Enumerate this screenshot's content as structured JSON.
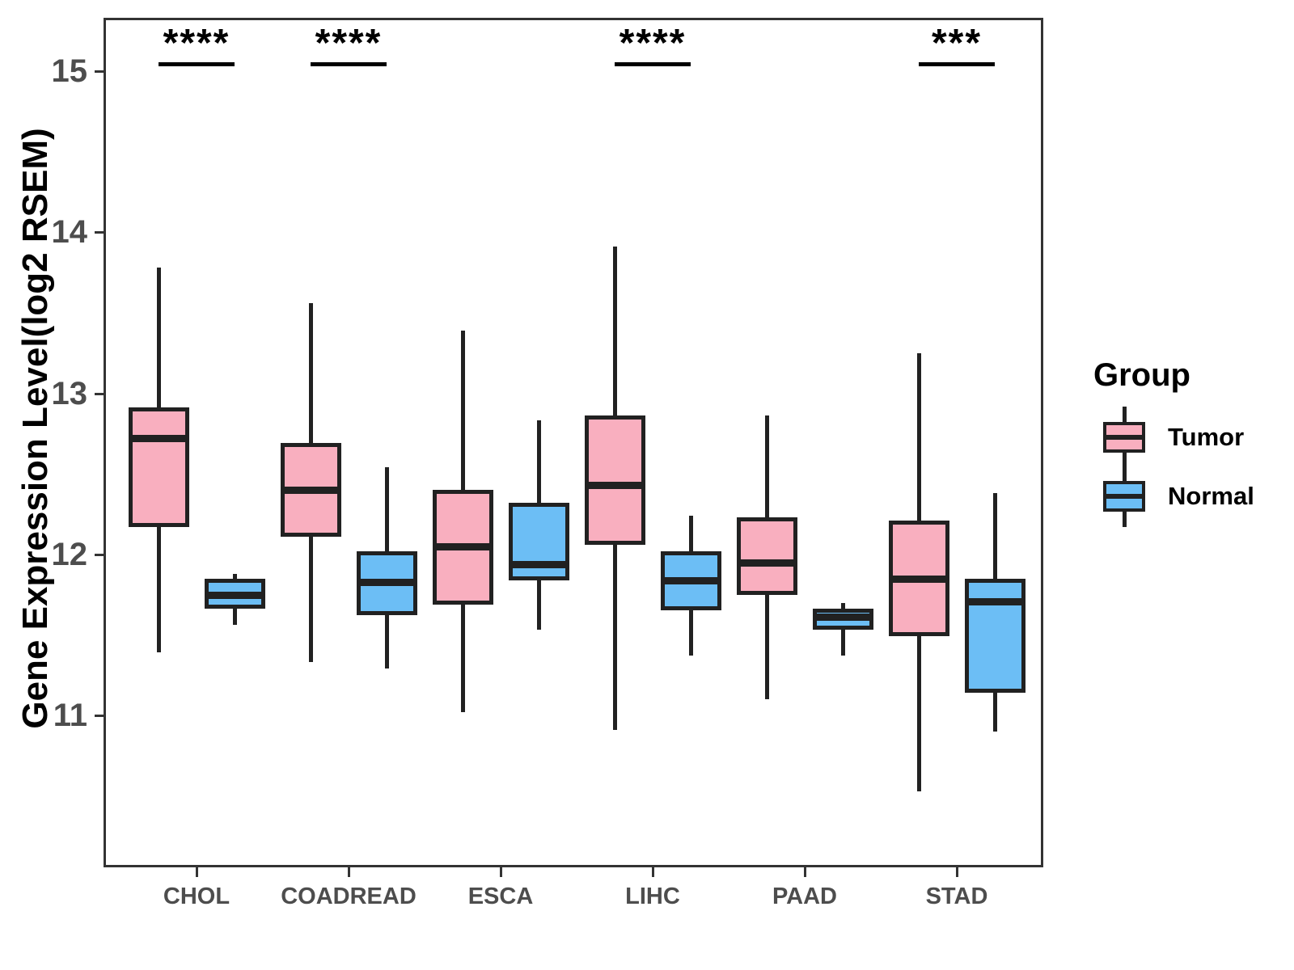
{
  "chart_data": {
    "type": "box",
    "title": "",
    "xlabel": "",
    "ylabel": "Gene Expression Level(log2 RSEM)",
    "categories": [
      "CHOL",
      "COADREAD",
      "ESCA",
      "LIHC",
      "PAAD",
      "STAD"
    ],
    "yticks": [
      11,
      12,
      13,
      14,
      15
    ],
    "ylim": [
      10.05,
      15.35
    ],
    "grid": false,
    "colors": {
      "tumor_fill": "#F9AFBF",
      "normal_fill": "#6CBEF5",
      "box_border": "#212121",
      "panel_border": "#333333",
      "tick_label": "#4d4d4d"
    },
    "legend": {
      "title": "Group",
      "position": "right",
      "entries": [
        {
          "label": "Tumor",
          "color": "#F9AFBF"
        },
        {
          "label": "Normal",
          "color": "#6CBEF5"
        }
      ]
    },
    "series": [
      {
        "name": "Tumor",
        "color": "#F9AFBF",
        "boxes": [
          {
            "category": "CHOL",
            "whisker_low": 11.39,
            "q1": 12.17,
            "median": 12.72,
            "q3": 12.91,
            "whisker_high": 13.78
          },
          {
            "category": "COADREAD",
            "whisker_low": 11.33,
            "q1": 12.11,
            "median": 12.4,
            "q3": 12.69,
            "whisker_high": 13.56
          },
          {
            "category": "ESCA",
            "whisker_low": 11.02,
            "q1": 11.69,
            "median": 12.05,
            "q3": 12.4,
            "whisker_high": 13.39
          },
          {
            "category": "LIHC",
            "whisker_low": 10.91,
            "q1": 12.06,
            "median": 12.43,
            "q3": 12.86,
            "whisker_high": 13.91
          },
          {
            "category": "PAAD",
            "whisker_low": 11.1,
            "q1": 11.75,
            "median": 11.95,
            "q3": 12.23,
            "whisker_high": 12.86
          },
          {
            "category": "STAD",
            "whisker_low": 10.53,
            "q1": 11.49,
            "median": 11.85,
            "q3": 12.21,
            "whisker_high": 13.25
          }
        ]
      },
      {
        "name": "Normal",
        "color": "#6CBEF5",
        "boxes": [
          {
            "category": "CHOL",
            "whisker_low": 11.56,
            "q1": 11.66,
            "median": 11.75,
            "q3": 11.85,
            "whisker_high": 11.88
          },
          {
            "category": "COADREAD",
            "whisker_low": 11.29,
            "q1": 11.62,
            "median": 11.83,
            "q3": 12.02,
            "whisker_high": 12.54
          },
          {
            "category": "ESCA",
            "whisker_low": 11.53,
            "q1": 11.84,
            "median": 11.94,
            "q3": 12.32,
            "whisker_high": 12.83
          },
          {
            "category": "LIHC",
            "whisker_low": 11.37,
            "q1": 11.65,
            "median": 11.84,
            "q3": 12.02,
            "whisker_high": 12.24
          },
          {
            "category": "PAAD",
            "whisker_low": 11.37,
            "q1": 11.53,
            "median": 11.61,
            "q3": 11.66,
            "whisker_high": 11.7
          },
          {
            "category": "STAD",
            "whisker_low": 10.9,
            "q1": 11.14,
            "median": 11.71,
            "q3": 11.85,
            "whisker_high": 12.38
          }
        ]
      }
    ],
    "significance": [
      {
        "category": "CHOL",
        "label": "****"
      },
      {
        "category": "COADREAD",
        "label": "****"
      },
      {
        "category": "LIHC",
        "label": "****"
      },
      {
        "category": "STAD",
        "label": "***"
      }
    ]
  }
}
